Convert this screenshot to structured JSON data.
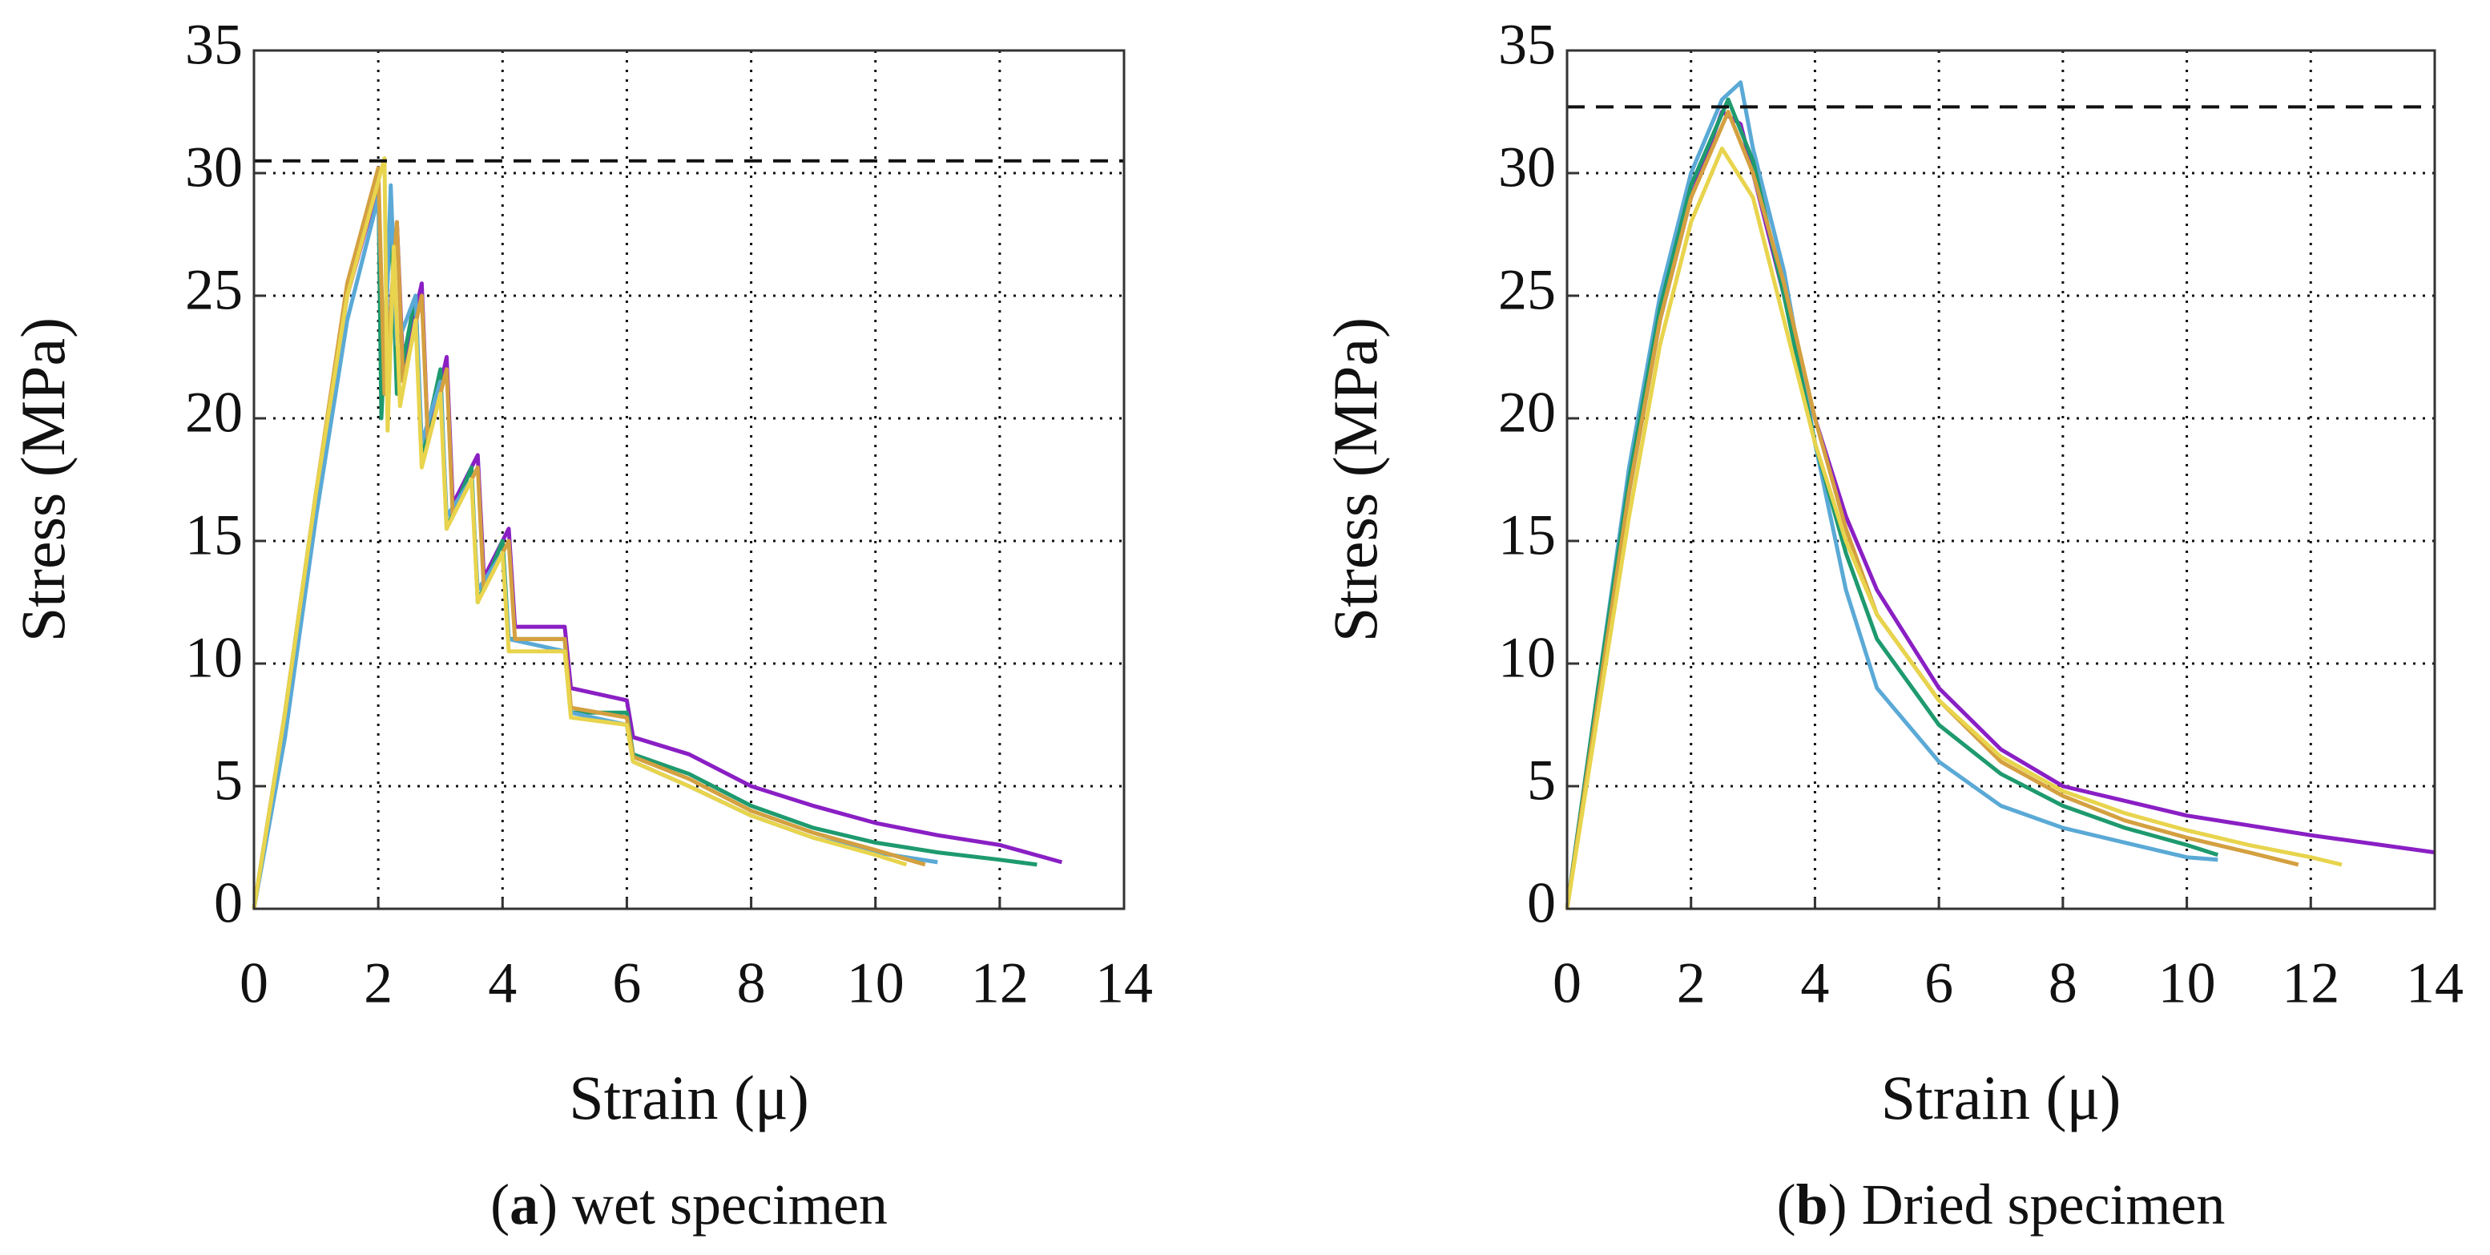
{
  "chart_data": [
    {
      "type": "line",
      "xlabel": "Strain (μ)",
      "ylabel": "Stress (MPa)",
      "caption": [
        "(",
        "a",
        ") wet specimen"
      ],
      "xlim": [
        0,
        14
      ],
      "ylim": [
        0,
        35
      ],
      "xticks": [
        0,
        2,
        4,
        6,
        8,
        10,
        12,
        14
      ],
      "yticks": [
        0,
        5,
        10,
        15,
        20,
        25,
        30,
        35
      ],
      "grid": true,
      "reference_line": 30.5,
      "series": [
        {
          "color": "#8a1fc4",
          "x": [
            0,
            0.5,
            1,
            1.5,
            2,
            2.1,
            2.3,
            2.4,
            2.7,
            2.8,
            3.1,
            3.2,
            3.6,
            3.7,
            4.1,
            4.2,
            5,
            5.1,
            6,
            6.1,
            7,
            8,
            9,
            10,
            11,
            12,
            13
          ],
          "values": [
            0,
            8,
            17,
            25,
            29.5,
            21,
            28,
            22,
            25.5,
            19,
            22.5,
            16.5,
            18.5,
            13.5,
            15.5,
            11.5,
            11.5,
            9,
            8.5,
            7,
            6.3,
            5,
            4.2,
            3.5,
            3,
            2.6,
            1.9
          ]
        },
        {
          "color": "#1e9a6e",
          "x": [
            0,
            0.5,
            1,
            1.5,
            2,
            2.05,
            2.2,
            2.3,
            2.6,
            2.7,
            3,
            3.1,
            3.5,
            3.6,
            4,
            4.1,
            5,
            5.1,
            6,
            6.1,
            7,
            8,
            9,
            10,
            11,
            12,
            12.6
          ],
          "values": [
            0,
            8,
            17,
            25,
            30,
            20,
            28.5,
            21,
            25,
            18.5,
            22,
            15.5,
            18,
            12.5,
            15,
            11,
            11,
            8,
            8,
            6.3,
            5.5,
            4.2,
            3.3,
            2.7,
            2.3,
            2,
            1.8
          ]
        },
        {
          "color": "#5aa9d6",
          "x": [
            0,
            0.5,
            1,
            1.5,
            2,
            2.1,
            2.2,
            2.3,
            2.6,
            2.7,
            3,
            3.1,
            3.5,
            3.6,
            4,
            4.1,
            5,
            5.1,
            6,
            6.1,
            7,
            8,
            9,
            10,
            11
          ],
          "values": [
            0,
            7,
            16,
            24,
            29,
            22,
            29.5,
            23,
            25,
            19,
            21.5,
            16,
            17.5,
            13,
            14.5,
            11,
            10.5,
            8,
            7.5,
            6,
            5,
            3.8,
            2.9,
            2.3,
            1.9
          ]
        },
        {
          "color": "#d4a040",
          "x": [
            0,
            0.5,
            1,
            1.5,
            2,
            2.1,
            2.3,
            2.4,
            2.7,
            2.8,
            3.1,
            3.2,
            3.6,
            3.7,
            4.1,
            4.2,
            5,
            5.1,
            6,
            6.1,
            7,
            8,
            9,
            10,
            10.8
          ],
          "values": [
            0,
            8,
            17,
            25.5,
            30.2,
            21,
            28,
            21.5,
            25,
            19,
            22,
            16,
            18,
            13,
            15,
            11,
            11,
            8.2,
            7.8,
            6.2,
            5.3,
            4,
            3.1,
            2.4,
            1.8
          ]
        },
        {
          "color": "#e8d44d",
          "x": [
            0,
            0.5,
            1,
            1.5,
            2.1,
            2.15,
            2.25,
            2.35,
            2.6,
            2.7,
            3,
            3.1,
            3.5,
            3.6,
            4,
            4.1,
            5,
            5.1,
            6,
            6.1,
            7,
            8,
            9,
            10,
            10.5
          ],
          "values": [
            0,
            8,
            17,
            25,
            30.6,
            19.5,
            27,
            20.5,
            24,
            18,
            21,
            15.5,
            17.5,
            12.5,
            14.5,
            10.5,
            10.5,
            7.8,
            7.5,
            6,
            5,
            3.8,
            2.9,
            2.2,
            1.8
          ]
        }
      ]
    },
    {
      "type": "line",
      "xlabel": "Strain (μ)",
      "ylabel": "Stress (MPa)",
      "caption": [
        "(",
        "b",
        ") Dried specimen"
      ],
      "xlim": [
        0,
        14
      ],
      "ylim": [
        0,
        35
      ],
      "xticks": [
        0,
        2,
        4,
        6,
        8,
        10,
        12,
        14
      ],
      "yticks": [
        0,
        5,
        10,
        15,
        20,
        25,
        30,
        35
      ],
      "grid": true,
      "reference_line": 32.7,
      "series": [
        {
          "color": "#8a1fc4",
          "x": [
            0,
            0.5,
            1,
            1.5,
            2,
            2.5,
            2.8,
            3,
            3.5,
            4,
            4.5,
            5,
            6,
            7,
            8,
            10,
            12,
            14
          ],
          "values": [
            0,
            9,
            17,
            24,
            29,
            32.5,
            32,
            30,
            25,
            20,
            16,
            13,
            9,
            6.5,
            5,
            3.8,
            3,
            2.3
          ]
        },
        {
          "color": "#5aa9d6",
          "x": [
            0,
            0.5,
            1,
            1.5,
            2,
            2.5,
            2.8,
            3,
            3.5,
            4,
            4.5,
            5,
            6,
            7,
            8,
            9,
            10,
            10.5
          ],
          "values": [
            0,
            9,
            18,
            25,
            30,
            33,
            33.7,
            31,
            26,
            19,
            13,
            9,
            6,
            4.2,
            3.3,
            2.7,
            2.1,
            2
          ]
        },
        {
          "color": "#1e9a6e",
          "x": [
            0,
            0.5,
            1,
            1.5,
            2,
            2.6,
            3,
            3.5,
            4,
            4.5,
            5,
            6,
            7,
            8,
            9,
            10,
            10.5
          ],
          "values": [
            0,
            9,
            17.5,
            24.5,
            29.5,
            33,
            30.5,
            25,
            19,
            14.5,
            11,
            7.5,
            5.5,
            4.2,
            3.3,
            2.6,
            2.2
          ]
        },
        {
          "color": "#d4a040",
          "x": [
            0,
            0.5,
            1,
            1.5,
            2,
            2.6,
            3,
            3.5,
            4,
            4.5,
            5,
            6,
            7,
            8,
            9,
            10,
            11,
            11.8
          ],
          "values": [
            0,
            8.5,
            17,
            24,
            29,
            32.5,
            30,
            25.5,
            20,
            15.5,
            12,
            8.5,
            6,
            4.6,
            3.6,
            2.9,
            2.3,
            1.8
          ]
        },
        {
          "color": "#e8d44d",
          "x": [
            0,
            0.5,
            1,
            1.5,
            2,
            2.5,
            3,
            3.5,
            4,
            4.5,
            5,
            6,
            7,
            8,
            9,
            10,
            11,
            12,
            12.5
          ],
          "values": [
            0,
            8,
            16,
            23,
            28,
            31,
            29,
            24,
            19,
            15,
            12,
            8.5,
            6.2,
            4.8,
            3.9,
            3.2,
            2.6,
            2.1,
            1.8
          ]
        }
      ]
    }
  ]
}
